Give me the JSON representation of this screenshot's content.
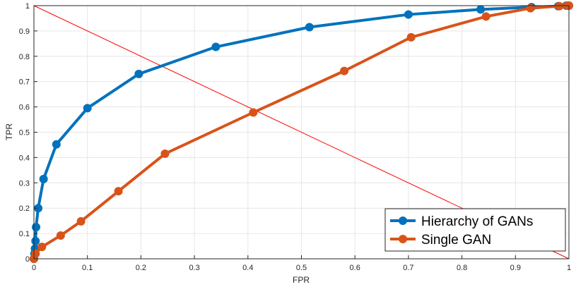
{
  "chart_data": {
    "type": "line",
    "title": "",
    "xlabel": "FPR",
    "ylabel": "TPR",
    "xlim": [
      0,
      1
    ],
    "ylim": [
      0,
      1
    ],
    "x_ticks": [
      "0",
      "0.1",
      "0.2",
      "0.3",
      "0.4",
      "0.5",
      "0.6",
      "0.7",
      "0.8",
      "0.9",
      "1"
    ],
    "y_ticks": [
      "0",
      "0.1",
      "0.2",
      "0.3",
      "0.4",
      "0.5",
      "0.6",
      "0.7",
      "0.8",
      "0.9",
      "1"
    ],
    "grid": true,
    "legend_position": "bottom-right",
    "series": [
      {
        "name": "Hierarchy of GANs",
        "color": "#0072BD",
        "x": [
          0.0,
          0.001,
          0.002,
          0.003,
          0.004,
          0.008,
          0.018,
          0.042,
          0.1,
          0.196,
          0.34,
          0.515,
          0.7,
          0.835,
          0.93,
          0.98,
          0.995,
          1.0
        ],
        "y": [
          0.0,
          0.02,
          0.04,
          0.07,
          0.125,
          0.2,
          0.315,
          0.452,
          0.595,
          0.73,
          0.837,
          0.915,
          0.965,
          0.985,
          0.994,
          0.998,
          1.0,
          1.0
        ]
      },
      {
        "name": "Single GAN",
        "color": "#D95319",
        "x": [
          0.0,
          0.003,
          0.015,
          0.05,
          0.088,
          0.158,
          0.245,
          0.41,
          0.58,
          0.705,
          0.845,
          0.928,
          0.982,
          0.997,
          1.0
        ],
        "y": [
          0.0,
          0.02,
          0.047,
          0.092,
          0.148,
          0.267,
          0.415,
          0.578,
          0.742,
          0.875,
          0.957,
          0.99,
          0.998,
          1.0,
          1.0
        ]
      }
    ],
    "reference_line": {
      "color": "#FF0000",
      "from": [
        0,
        1
      ],
      "to": [
        1,
        0
      ]
    }
  }
}
